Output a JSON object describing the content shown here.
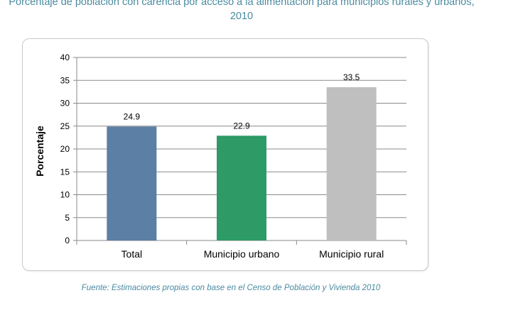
{
  "header": {
    "title_line1": "Porcentaje de población con carencia por acceso a la alimentación para municipios rurales y urbanos,",
    "title_line2": "2010"
  },
  "footer": {
    "source": "Fuente: Estimaciones propias con base en el Censo de Población y Vivienda 2010"
  },
  "chart_data": {
    "type": "bar",
    "title": "Porcentaje de población con carencia por acceso a la alimentación para municipios rurales y urbanos, 2010",
    "xlabel": "",
    "ylabel": "Porcentaje",
    "categories": [
      "Total",
      "Municipio urbano",
      "Municipio rural"
    ],
    "values": [
      24.9,
      22.9,
      33.5
    ],
    "value_labels": [
      "24.9",
      "22.9",
      "33.5"
    ],
    "colors": [
      "#5b7fa5",
      "#2e9a66",
      "#bfbfbf"
    ],
    "ylim": [
      0,
      40
    ],
    "yticks": [
      0,
      5,
      10,
      15,
      20,
      25,
      30,
      35,
      40
    ],
    "grid": true,
    "legend": "none"
  }
}
